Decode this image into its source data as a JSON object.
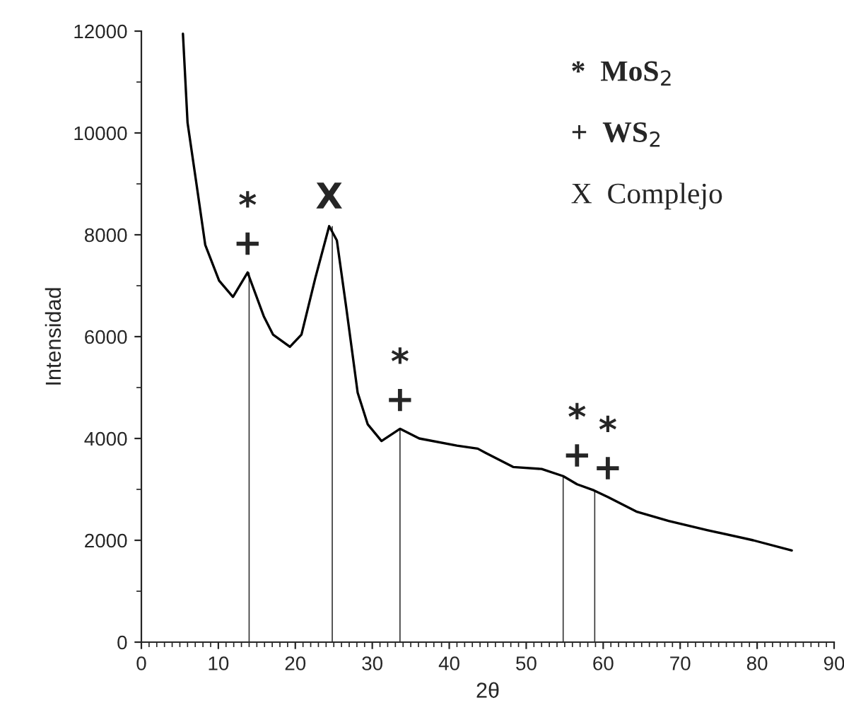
{
  "chart_data": {
    "type": "line",
    "xlabel": "2θ",
    "ylabel": "Intensidad",
    "xlim": [
      0,
      90
    ],
    "xticks": [
      0,
      10,
      20,
      30,
      40,
      50,
      60,
      70,
      80,
      90
    ],
    "ylim": [
      0,
      12000
    ],
    "yticks": [
      0,
      2000,
      4000,
      6000,
      8000,
      10000,
      12000
    ],
    "grid": false,
    "marker": "none",
    "line_style": "solid",
    "series": [
      {
        "color": "#000000",
        "x": [
          5.4,
          6.0,
          7.35,
          8.3,
          10.1,
          11.9,
          13.8,
          15.9,
          17.1,
          19.3,
          20.8,
          22.6,
          24.4,
          25.4,
          26.6,
          28.1,
          29.4,
          31.2,
          33.6,
          36.1,
          41.0,
          43.7,
          44.7,
          48.3,
          52.0,
          54.8,
          56.6,
          58.8,
          60.6,
          64.3,
          68.5,
          73.5,
          79.5,
          84.5
        ],
        "values": [
          11950,
          10200,
          8800,
          7800,
          7100,
          6780,
          7260,
          6400,
          6040,
          5800,
          6040,
          7150,
          8170,
          7890,
          6590,
          4900,
          4280,
          3950,
          4190,
          4000,
          3860,
          3800,
          3720,
          3440,
          3400,
          3260,
          3100,
          2980,
          2850,
          2565,
          2380,
          2200,
          2000,
          1800
        ]
      },
      {
        "type": "bar",
        "color": "#333333",
        "x": [
          14.0,
          24.8,
          33.6,
          54.8,
          58.9
        ],
        "values": [
          7260,
          8170,
          4190,
          3260,
          2980
        ]
      }
    ],
    "annotations": [
      {
        "text": "*",
        "x": 13.8,
        "y": 7260
      },
      {
        "text": "+",
        "x": 13.8,
        "y": 7260
      },
      {
        "text": "X",
        "x": 24.4,
        "y": 8170
      },
      {
        "text": "*",
        "x": 33.6,
        "y": 4190
      },
      {
        "text": "+",
        "x": 33.6,
        "y": 4190
      },
      {
        "text": "*",
        "x": 56.6,
        "y": 3100
      },
      {
        "text": "+",
        "x": 56.6,
        "y": 3100
      },
      {
        "text": "*",
        "x": 60.6,
        "y": 2850
      },
      {
        "text": "+",
        "x": 60.6,
        "y": 2850
      },
      "*  MoS$_{2}$",
      "+  WS$_{2}$",
      "X  Complejo"
    ]
  }
}
